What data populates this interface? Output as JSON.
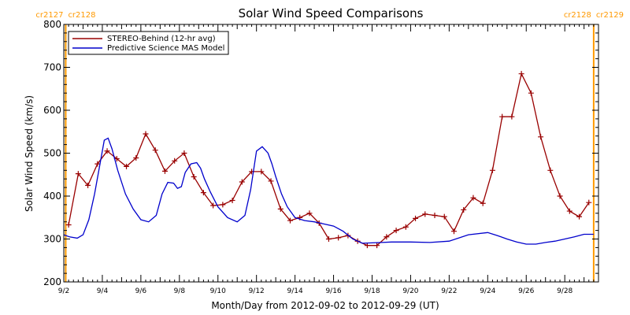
{
  "chart_data": {
    "type": "line",
    "title": "Solar Wind Speed Comparisons",
    "xlabel": "Month/Day from 2012-09-02 to 2012-09-29 (UT)",
    "ylabel": "Solar Wind Speed (km/s)",
    "xlim": [
      0,
      27.75
    ],
    "ylim": [
      200,
      800
    ],
    "yticks": [
      200,
      300,
      400,
      500,
      600,
      700,
      800
    ],
    "xtick_labels": [
      {
        "x": 0,
        "label": "9/2"
      },
      {
        "x": 2,
        "label": "9/4"
      },
      {
        "x": 4,
        "label": "9/6"
      },
      {
        "x": 6,
        "label": "9/8"
      },
      {
        "x": 8,
        "label": "9/10"
      },
      {
        "x": 10,
        "label": "9/12"
      },
      {
        "x": 12,
        "label": "9/14"
      },
      {
        "x": 14,
        "label": "9/16"
      },
      {
        "x": 16,
        "label": "9/18"
      },
      {
        "x": 18,
        "label": "9/20"
      },
      {
        "x": 20,
        "label": "9/22"
      },
      {
        "x": 22,
        "label": "9/24"
      },
      {
        "x": 24,
        "label": "9/26"
      },
      {
        "x": 26,
        "label": "9/28"
      }
    ],
    "legend_position": "top-left",
    "grid": false,
    "series": [
      {
        "name": "STEREO-Behind (12-hr avg)",
        "color": "#990000",
        "markers": "plus",
        "x": [
          0.25,
          0.75,
          1.25,
          1.75,
          2.25,
          2.75,
          3.25,
          3.75,
          4.25,
          4.75,
          5.25,
          5.75,
          6.25,
          6.75,
          7.25,
          7.75,
          8.25,
          8.75,
          9.25,
          9.75,
          10.25,
          10.75,
          11.25,
          11.75,
          12.25,
          12.75,
          13.25,
          13.75,
          14.25,
          14.75,
          15.25,
          15.75,
          16.25,
          16.75,
          17.25,
          17.75,
          18.25,
          18.75,
          19.25,
          19.75,
          20.25,
          20.75,
          21.25,
          21.75,
          22.25,
          22.75,
          23.25,
          23.75,
          24.25,
          24.75,
          25.25,
          25.75,
          26.25,
          26.75,
          27.25,
          27.75
        ],
        "values": [
          333,
          452,
          425,
          475,
          505,
          487,
          469,
          489,
          545,
          507,
          458,
          482,
          500,
          445,
          408,
          378,
          380,
          390,
          433,
          457,
          457,
          435,
          370,
          343,
          350,
          360,
          337,
          300,
          303,
          308,
          295,
          285,
          285,
          305,
          320,
          328,
          348,
          358,
          355,
          352,
          318,
          368,
          396,
          383,
          460,
          585,
          585,
          685,
          640,
          538,
          460,
          400,
          365,
          352,
          385,
          null
        ]
      },
      {
        "name": "Predictive Science MAS Model",
        "color": "#0000cc",
        "markers": "none",
        "x": [
          0,
          0.3,
          0.7,
          1.0,
          1.3,
          1.6,
          1.9,
          2.1,
          2.3,
          2.5,
          2.8,
          3.2,
          3.6,
          4.0,
          4.4,
          4.8,
          5.1,
          5.4,
          5.7,
          5.9,
          6.1,
          6.3,
          6.6,
          6.9,
          7.1,
          7.3,
          7.6,
          8.0,
          8.5,
          9.0,
          9.4,
          9.7,
          10.0,
          10.3,
          10.6,
          10.8,
          11.0,
          11.3,
          11.6,
          12.0,
          12.5,
          13.0,
          13.5,
          14.0,
          14.5,
          15.0,
          15.5,
          16.0,
          16.5,
          17.0,
          18.0,
          19.0,
          20.0,
          21.0,
          22.0,
          22.5,
          23.0,
          23.5,
          24.0,
          24.5,
          25.0,
          25.5,
          26.0,
          26.5,
          27.0,
          27.5
        ],
        "values": [
          310,
          305,
          302,
          310,
          345,
          405,
          480,
          530,
          535,
          510,
          460,
          405,
          370,
          345,
          340,
          355,
          405,
          432,
          430,
          418,
          422,
          455,
          475,
          478,
          465,
          440,
          410,
          375,
          350,
          340,
          355,
          415,
          505,
          515,
          500,
          475,
          445,
          405,
          375,
          350,
          343,
          340,
          335,
          330,
          318,
          300,
          290,
          291,
          292,
          293,
          293,
          292,
          295,
          310,
          315,
          308,
          300,
          293,
          288,
          288,
          292,
          295,
          300,
          305,
          311,
          311
        ]
      }
    ],
    "carrington_markers": [
      {
        "x": 0.1,
        "left_label": "cr2127",
        "right_label": "cr2128"
      },
      {
        "x": 27.5,
        "left_label": "cr2128",
        "right_label": "cr2129"
      }
    ],
    "marker_color": "#ff9900"
  }
}
